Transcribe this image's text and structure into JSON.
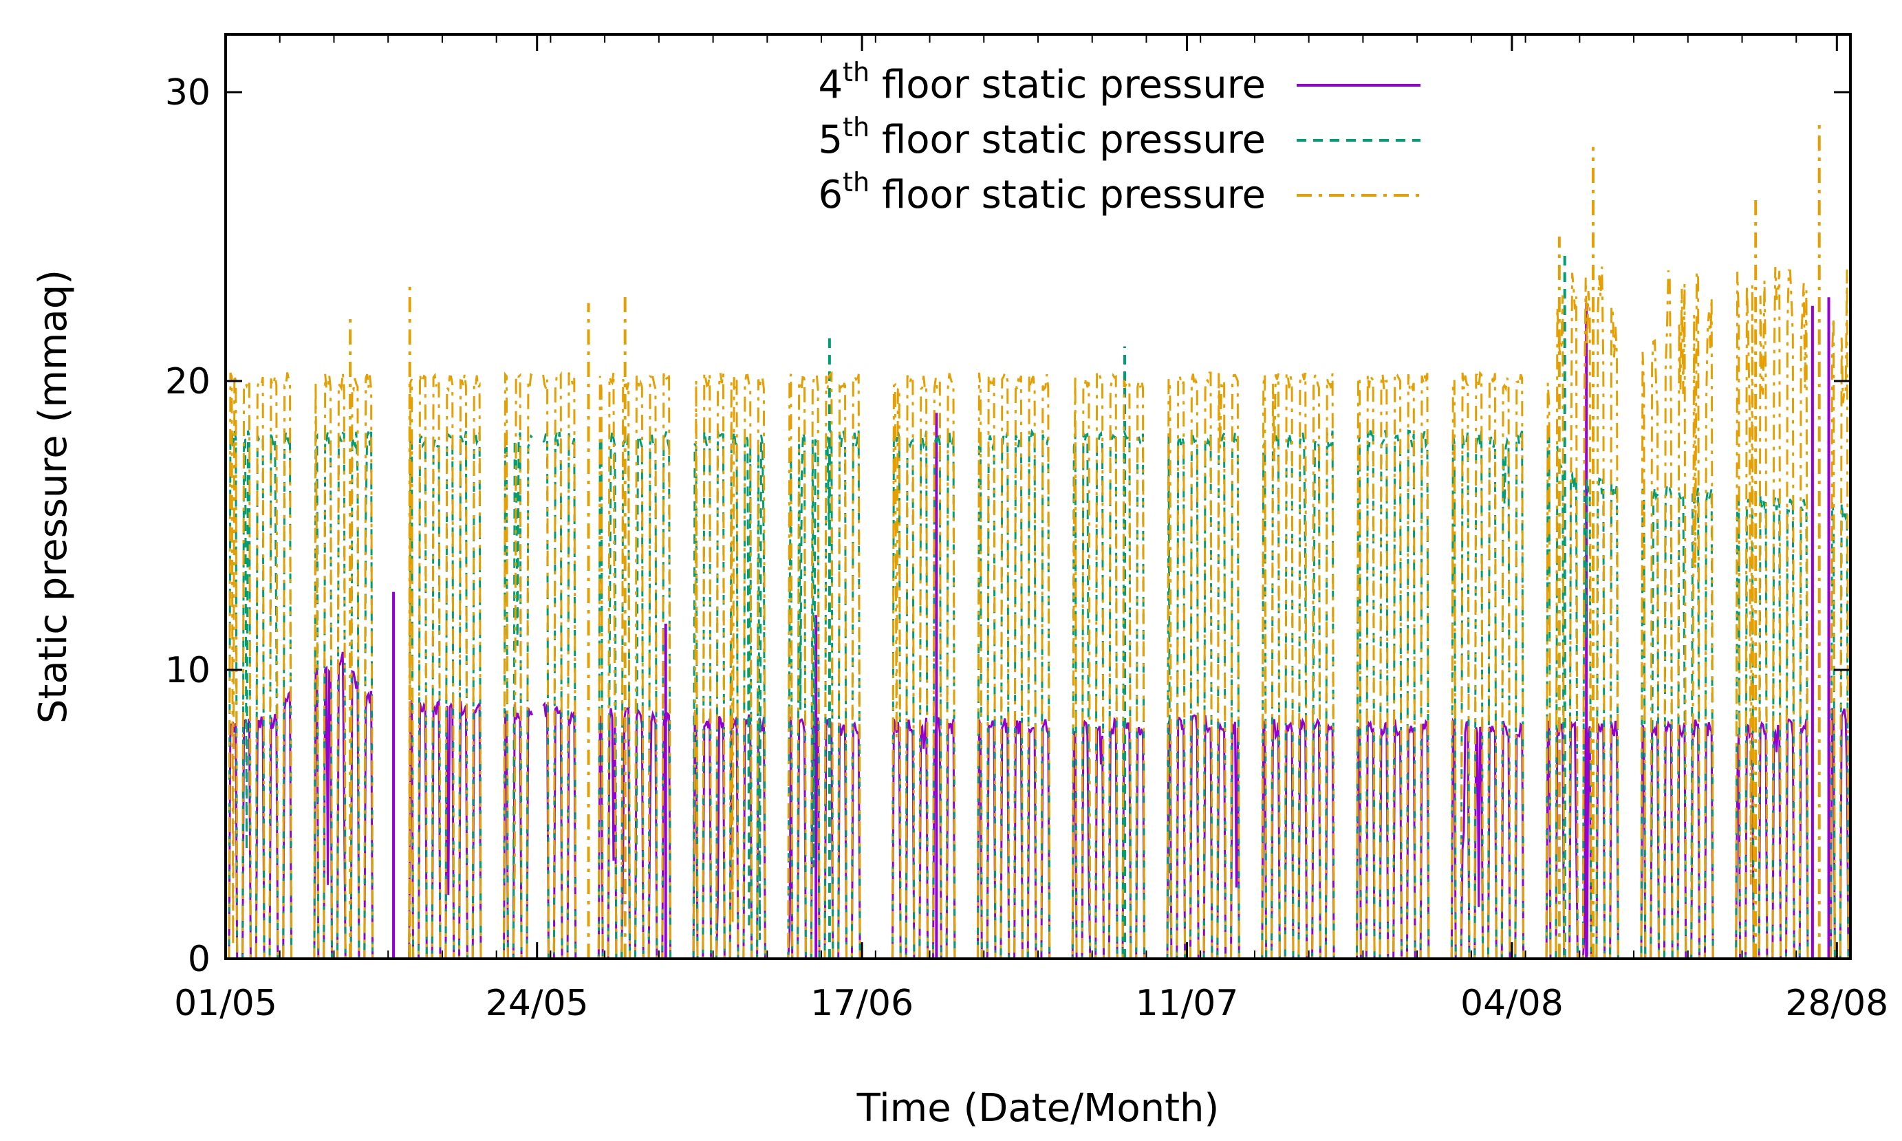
{
  "chart_data": {
    "type": "line",
    "title": "",
    "xlabel": "Time (Date/Month)",
    "ylabel": "Static pressure (mmaq)",
    "x_ticks": [
      "01/05",
      "24/05",
      "17/06",
      "11/07",
      "04/08",
      "28/08"
    ],
    "x_tick_days": [
      0,
      23,
      47,
      71,
      95,
      119
    ],
    "xlim_days": [
      0,
      120
    ],
    "y_ticks": [
      "0",
      "10",
      "20",
      "30"
    ],
    "ylim": [
      0,
      32
    ],
    "grid": false,
    "legend_position": "top-center",
    "sample_interval_days": 0.1,
    "shutdown_nights": "most nights the pressure drops to 0 (system off); weekends and day 116 fully off",
    "series": [
      {
        "name_base": "floor static pressure",
        "ordinal": "4",
        "suffix": "th",
        "color": "#9400d3",
        "dash": "solid",
        "working_level": {
          "days": [
            0,
            4,
            5,
            9,
            10,
            15,
            16,
            46,
            47,
            66,
            67,
            72,
            73,
            116,
            117,
            120
          ],
          "values": [
            8.0,
            8.2,
            9.5,
            10.5,
            9.0,
            8.8,
            8.7,
            8.0,
            8.1,
            8.0,
            8.0,
            8.2,
            8.0,
            8.0,
            8.3,
            8.5
          ]
        },
        "spikes": [
          {
            "day": 12.4,
            "value": 12.7
          },
          {
            "day": 32.5,
            "value": 11.6
          },
          {
            "day": 43.6,
            "value": 11.9
          },
          {
            "day": 52.5,
            "value": 18.9
          },
          {
            "day": 100.5,
            "value": 22.7
          },
          {
            "day": 117.2,
            "value": 22.6
          },
          {
            "day": 118.4,
            "value": 22.9
          }
        ],
        "gaps": [
          [
            11.2,
            12.3
          ],
          [
            22.7,
            23.4
          ],
          [
            48.0,
            49.2
          ]
        ]
      },
      {
        "name_base": "floor static pressure",
        "ordinal": "5",
        "suffix": "th",
        "color": "#009e73",
        "dash": "dashed",
        "working_level": {
          "days": [
            0,
            98,
            99,
            120
          ],
          "values": [
            18.0,
            18.0,
            16.5,
            15.5
          ]
        },
        "spikes": [
          {
            "day": 44.6,
            "value": 21.7
          },
          {
            "day": 66.4,
            "value": 21.2
          },
          {
            "day": 98.9,
            "value": 24.5
          }
        ],
        "gaps": [
          [
            11.2,
            12.3
          ],
          [
            22.7,
            23.4
          ],
          [
            48.0,
            49.2
          ]
        ]
      },
      {
        "name_base": "floor static pressure",
        "ordinal": "6",
        "suffix": "th",
        "color": "#e69f00",
        "dash": "dash-dot",
        "working_level": {
          "days": [
            0,
            98,
            99,
            120
          ],
          "values": [
            20.0,
            20.0,
            21.5,
            21.5
          ]
        },
        "amplitude_after_day_98": 5.0,
        "spikes": [
          {
            "day": 9.2,
            "value": 22.2
          },
          {
            "day": 13.6,
            "value": 23.5
          },
          {
            "day": 26.8,
            "value": 22.7
          },
          {
            "day": 29.5,
            "value": 23.0
          },
          {
            "day": 98.5,
            "value": 25.0
          },
          {
            "day": 101.0,
            "value": 28.1
          },
          {
            "day": 113.0,
            "value": 26.5
          },
          {
            "day": 117.7,
            "value": 29.0
          }
        ],
        "gaps": [
          [
            11.2,
            12.3
          ],
          [
            22.7,
            23.4
          ],
          [
            48.0,
            49.2
          ]
        ]
      }
    ]
  }
}
